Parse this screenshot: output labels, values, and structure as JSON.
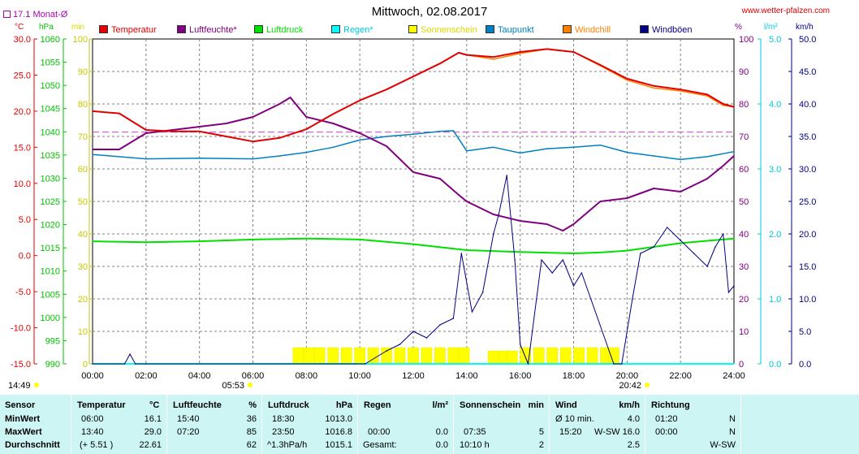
{
  "title": "Mittwoch, 02.08.2017",
  "website": "www.wetter-pfalzen.com",
  "avg_label": "17.1 Monat-Ø",
  "legend": [
    {
      "label": "Temperatur",
      "color": "#e00000"
    },
    {
      "label": "Luftfeuchte*",
      "color": "#800080"
    },
    {
      "label": "Luftdruck",
      "color": "#00e000"
    },
    {
      "label": "Regen*",
      "color": "#00ffff"
    },
    {
      "label": "Sonnenschein",
      "color": "#ffff00"
    },
    {
      "label": "Taupunkt",
      "color": "#0080c0"
    },
    {
      "label": "Windchill",
      "color": "#ff8000"
    },
    {
      "label": "Windböen",
      "color": "#000080"
    }
  ],
  "axes": {
    "temp_unit": "°C",
    "hpa_unit": "hPa",
    "min_unit": "min",
    "pct_unit": "%",
    "rain_unit": "l/m²",
    "wind_unit": "km/h",
    "temp_ticks": [
      "30.0",
      "25.0",
      "20.0",
      "15.0",
      "10.0",
      "5.0",
      "0.0",
      "-5.0",
      "-10.0",
      "-15.0"
    ],
    "hpa_ticks": [
      "1060",
      "1055",
      "1050",
      "1045",
      "1040",
      "1035",
      "1030",
      "1025",
      "1020",
      "1015",
      "1010",
      "1005",
      "1000",
      "995",
      "990"
    ],
    "min_ticks": [
      "100",
      "90",
      "80",
      "70",
      "60",
      "50",
      "40",
      "30",
      "20",
      "10",
      "0"
    ],
    "pct_ticks": [
      "100",
      "90",
      "80",
      "70",
      "60",
      "50",
      "40",
      "30",
      "20",
      "10",
      "0"
    ],
    "rain_ticks": [
      "5.0",
      "4.0",
      "3.0",
      "2.0",
      "1.0",
      "0.0"
    ],
    "wind_ticks": [
      "50.0",
      "45.0",
      "40.0",
      "35.0",
      "30.0",
      "25.0",
      "20.0",
      "15.0",
      "10.0",
      "5.0",
      "0.0"
    ],
    "x_ticks": [
      "00:00",
      "02:00",
      "04:00",
      "06:00",
      "08:00",
      "10:00",
      "12:00",
      "14:00",
      "16:00",
      "18:00",
      "20:00",
      "22:00",
      "24:00"
    ],
    "sunrise": "05:53",
    "sunset": "20:42",
    "daylength": "14:49"
  },
  "chart_data": {
    "type": "line",
    "title": "Mittwoch, 02.08.2017",
    "x_unit": "hour of day",
    "xlim": [
      0,
      24
    ],
    "avg_temp_line": 17.1,
    "series": [
      {
        "name": "Temperatur",
        "axis": "°C",
        "ylim": [
          -15,
          30
        ],
        "x": [
          0,
          1,
          2,
          3,
          4,
          5,
          6,
          7,
          8,
          9,
          10,
          11,
          12,
          13,
          13.7,
          14,
          15,
          16,
          17,
          18,
          19,
          20,
          21,
          22,
          23,
          23.6,
          24
        ],
        "y": [
          20.0,
          19.7,
          17.4,
          17.2,
          17.2,
          16.5,
          15.8,
          16.3,
          17.5,
          19.6,
          21.5,
          23.0,
          24.8,
          26.6,
          28.1,
          27.8,
          27.5,
          28.2,
          28.6,
          28.2,
          26.4,
          24.5,
          23.5,
          23.0,
          22.3,
          21.0,
          20.6
        ]
      },
      {
        "name": "Luftfeuchte*",
        "axis": "%",
        "ylim": [
          0,
          100
        ],
        "x": [
          0,
          1,
          2,
          3,
          4,
          5,
          6,
          7,
          7.4,
          8,
          9,
          10,
          11,
          12,
          13,
          13.7,
          14,
          15,
          16,
          17,
          17.6,
          18,
          19,
          20,
          21,
          22,
          23,
          23.6,
          24
        ],
        "y": [
          66,
          66,
          71,
          72,
          73,
          74,
          76,
          80,
          82,
          76,
          74,
          71,
          67,
          59,
          57,
          52,
          50,
          46,
          44,
          43,
          41,
          43,
          50,
          51,
          54,
          53,
          57,
          61,
          64
        ]
      },
      {
        "name": "Luftdruck",
        "axis": "hPa",
        "ylim": [
          990,
          1060
        ],
        "x": [
          0,
          2,
          4,
          6,
          8,
          10,
          12,
          14,
          16,
          18,
          19,
          20,
          22,
          24
        ],
        "y": [
          1016.4,
          1016.2,
          1016.4,
          1016.8,
          1017.0,
          1016.8,
          1015.8,
          1014.5,
          1014.1,
          1013.8,
          1014.0,
          1014.4,
          1016.0,
          1017.0
        ]
      },
      {
        "name": "Regen*",
        "axis": "l/m²",
        "ylim": [
          0,
          5
        ],
        "x": [
          0,
          24
        ],
        "y": [
          0.0,
          0.0
        ]
      },
      {
        "name": "Sonnenschein",
        "axis": "min",
        "ylim": [
          0,
          100
        ],
        "x": [
          7.5,
          7.9,
          8.3,
          8.8,
          9.3,
          9.8,
          10.3,
          10.8,
          11.3,
          11.8,
          12.3,
          12.8,
          13.3,
          13.7,
          14.8,
          15.2,
          15.5,
          16.0,
          16.5,
          17.0,
          17.5,
          18.0,
          18.5,
          19.0,
          19.3
        ],
        "y": [
          5,
          5,
          5,
          5,
          5,
          5,
          5,
          5,
          5,
          5,
          5,
          5,
          5,
          5,
          4,
          4,
          4,
          5,
          5,
          5,
          5,
          5,
          5,
          5,
          5
        ]
      },
      {
        "name": "Taupunkt",
        "axis": "°C",
        "ylim": [
          -15,
          30
        ],
        "x": [
          0,
          2,
          4,
          6,
          7,
          8,
          9,
          10,
          11,
          12,
          13,
          13.5,
          14,
          15,
          16,
          17,
          18,
          19,
          20,
          21,
          22,
          23,
          24
        ],
        "y": [
          14.0,
          13.4,
          13.5,
          13.4,
          13.8,
          14.3,
          15.0,
          16.0,
          16.5,
          16.8,
          17.2,
          17.3,
          14.5,
          15.0,
          14.2,
          14.8,
          15.0,
          15.3,
          14.3,
          13.8,
          13.3,
          13.7,
          14.4
        ]
      },
      {
        "name": "Windchill",
        "axis": "°C",
        "ylim": [
          -15,
          30
        ],
        "x": [
          13.7,
          14,
          15,
          16,
          17,
          18,
          19,
          20,
          21,
          22,
          23,
          23.6,
          24
        ],
        "y": [
          28.1,
          27.8,
          27.2,
          28.0,
          28.6,
          28.2,
          26.3,
          24.3,
          23.2,
          22.8,
          22.1,
          20.8,
          20.6
        ]
      },
      {
        "name": "Windböen",
        "axis": "km/h",
        "ylim": [
          0,
          50
        ],
        "x": [
          0,
          1.2,
          1.4,
          1.6,
          2,
          9.8,
          10.2,
          11.0,
          11.5,
          12.0,
          12.5,
          13.0,
          13.5,
          13.8,
          14.2,
          14.6,
          15.0,
          15.2,
          15.5,
          15.8,
          16.0,
          16.3,
          16.8,
          17.2,
          17.6,
          18.0,
          18.3,
          19.5,
          19.8,
          20.2,
          20.5,
          21.0,
          21.5,
          22.0,
          22.5,
          23.0,
          23.3,
          23.6,
          23.8,
          24.0
        ],
        "y": [
          0,
          0,
          1.5,
          0,
          0,
          0,
          0,
          2,
          3,
          5,
          4,
          6,
          7,
          17,
          8,
          11,
          20,
          23,
          29,
          16,
          3,
          0,
          16,
          14,
          16,
          12,
          14,
          0,
          0,
          10,
          17,
          18,
          21,
          19,
          17,
          15,
          18,
          20,
          11,
          12
        ]
      }
    ]
  },
  "table": {
    "row_labels": {
      "sensor": "Sensor",
      "min": "MinWert",
      "max": "MaxWert",
      "avg": "Durchschnitt"
    },
    "temperature": {
      "header": "Temperatur",
      "unit": "°C",
      "min_time": "06:00",
      "min_val": "16.1",
      "max_time": "13:40",
      "max_val": "29.0",
      "avg_note": "(+ 5.51 )",
      "avg_val": "22.61"
    },
    "humidity": {
      "header": "Luftfeuchte",
      "unit": "%",
      "min_time": "15:40",
      "min_val": "36",
      "max_time": "07:20",
      "max_val": "85",
      "avg_val": "62"
    },
    "pressure": {
      "header": "Luftdruck",
      "unit": "hPa",
      "min_time": "18:30",
      "min_val": "1013.0",
      "max_time": "23:50",
      "max_val": "1016.8",
      "avg_note": "^1.3hPa/h",
      "avg_val": "1015.1"
    },
    "rain": {
      "header": "Regen",
      "unit": "l/m²",
      "max_time": "00:00",
      "max_val": "0.0",
      "avg_note": "Gesamt:",
      "avg_val": "0.0"
    },
    "sunshine": {
      "header": "Sonnenschein",
      "unit": "min",
      "max_time": "07:35",
      "max_val": "5",
      "avg_note": "10:10 h",
      "avg_val": "2"
    },
    "wind": {
      "header": "Wind",
      "unit": "km/h",
      "min_time": "Ø 10 min.",
      "min_val": "4.0",
      "max_time": "15:20",
      "max_dir": "W-SW",
      "max_val": "16.0",
      "avg_val": "2.5"
    },
    "direction": {
      "header": "Richtung",
      "min_time": "01:20",
      "min_val": "N",
      "max_time": "00:00",
      "max_val": "N",
      "avg_val": "W-SW"
    }
  }
}
